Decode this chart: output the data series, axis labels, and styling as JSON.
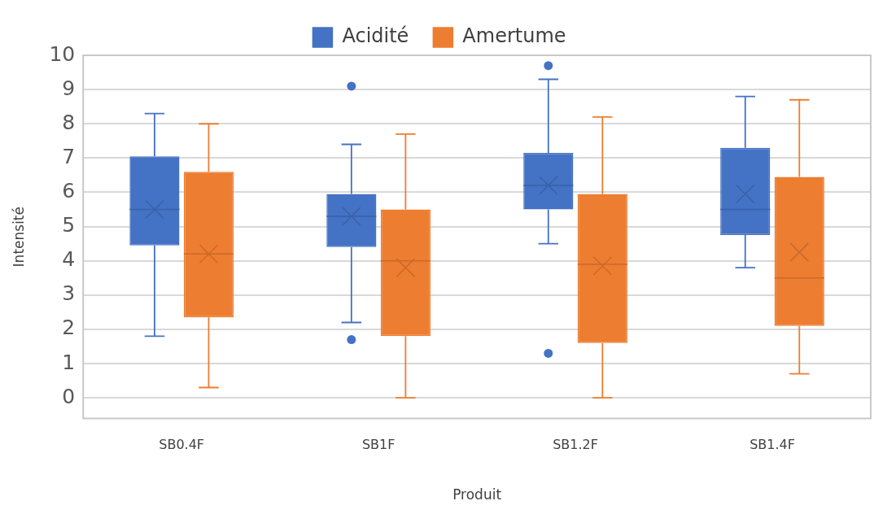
{
  "chart_data": {
    "type": "box",
    "xlabel": "Produit",
    "ylabel": "Intensité",
    "categories": [
      "SB0.4F",
      "SB1F",
      "SB1.2F",
      "SB1.4F"
    ],
    "series": [
      {
        "name": "Acidité",
        "color": "#4472c4",
        "boxes": [
          {
            "low": 1.8,
            "q1": 4.45,
            "median": 5.5,
            "q3": 7.05,
            "high": 8.3,
            "mean": 5.5
          },
          {
            "low": 2.2,
            "q1": 4.4,
            "median": 5.3,
            "q3": 5.95,
            "high": 7.4,
            "mean": 5.3,
            "outliers": [
              9.1,
              1.7
            ]
          },
          {
            "low": 4.5,
            "q1": 5.5,
            "median": 6.2,
            "q3": 7.15,
            "high": 9.3,
            "mean": 6.2,
            "outliers": [
              9.7,
              1.3
            ]
          },
          {
            "low": 3.8,
            "q1": 4.75,
            "median": 5.5,
            "q3": 7.3,
            "high": 8.8,
            "mean": 5.95
          }
        ]
      },
      {
        "name": "Amertume",
        "color": "#ed7d31",
        "boxes": [
          {
            "low": 0.3,
            "q1": 2.35,
            "median": 4.2,
            "q3": 6.6,
            "high": 8.0,
            "mean": 4.2
          },
          {
            "low": 0,
            "q1": 1.8,
            "median": 4.0,
            "q3": 5.5,
            "high": 7.7,
            "mean": 3.8
          },
          {
            "low": 0,
            "q1": 1.6,
            "median": 3.9,
            "q3": 5.95,
            "high": 8.2,
            "mean": 3.85
          },
          {
            "low": 0.7,
            "q1": 2.1,
            "median": 3.5,
            "q3": 6.45,
            "high": 8.7,
            "mean": 4.25
          }
        ]
      }
    ],
    "ylim": [
      -0.6,
      10
    ],
    "yticks": [
      0,
      1,
      2,
      3,
      4,
      5,
      6,
      7,
      8,
      9,
      10
    ],
    "grid": "y",
    "legend": "top"
  }
}
